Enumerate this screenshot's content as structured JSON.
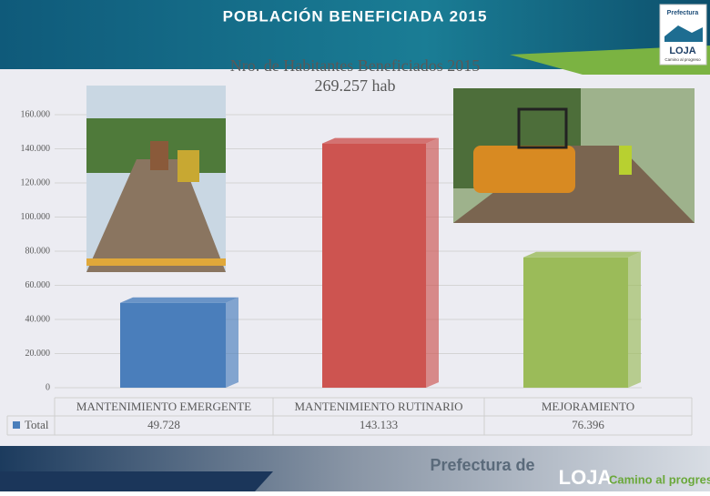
{
  "header": {
    "title": "POBLACIÓN BENEFICIADA 2015"
  },
  "logo": {
    "top": "Prefectura",
    "name": "LOJA",
    "motto": "Camino al progreso"
  },
  "footer": {
    "prefix": "Prefectura de",
    "name": "LOJA",
    "motto": "Camino al progreso"
  },
  "chart_data": {
    "type": "bar",
    "title": "Nro. de Habitantes  Beneficiados 2015",
    "subtitle": "269.257 hab",
    "categories": [
      "MANTENIMIENTO EMERGENTE",
      "MANTENIMIENTO RUTINARIO",
      "MEJORAMIENTO"
    ],
    "series": [
      {
        "name": "Total",
        "color": "#4a7ebb",
        "colors": [
          "#4a7ebb",
          "#cd5450",
          "#9bbb59"
        ],
        "values": [
          49728,
          143133,
          76396
        ],
        "value_labels": [
          "49.728",
          "143.133",
          "76.396"
        ]
      }
    ],
    "ylim": [
      0,
      160000
    ],
    "yticks": [
      0,
      {
        "value": 20000,
        "label": "20.000"
      },
      {
        "value": 40000,
        "label": "40.000"
      },
      {
        "value": 60000,
        "label": "60.000"
      },
      {
        "value": 80000,
        "label": "80.000"
      },
      {
        "value": 100000,
        "label": "100.000"
      },
      {
        "value": 120000,
        "label": "120.000"
      },
      {
        "value": 140000,
        "label": "140.000"
      },
      {
        "value": 160000,
        "label": "160.000"
      }
    ],
    "grid": true
  }
}
